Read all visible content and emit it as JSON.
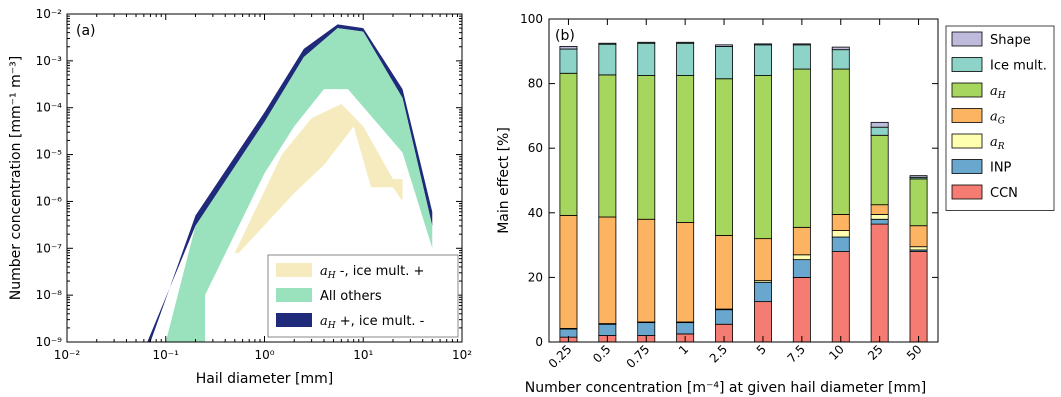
{
  "chart_data": [
    {
      "panel": "(a)",
      "type": "area",
      "xlabel": "Hail diameter [mm]",
      "ylabel": "Number concentration [mm⁻¹ m⁻³]",
      "xscale": "log",
      "yscale": "log",
      "xlim": [
        0.01,
        100
      ],
      "ylim": [
        1e-09,
        0.01
      ],
      "xticks": [
        "10⁻²",
        "10⁻¹",
        "10⁰",
        "10¹",
        "10²"
      ],
      "yticks": [
        "10⁻⁹",
        "10⁻⁸",
        "10⁻⁷",
        "10⁻⁶",
        "10⁻⁵",
        "10⁻⁴",
        "10⁻³",
        "10⁻²"
      ],
      "legend_position": "lower-right",
      "series": [
        {
          "name": "a_H +, ice mult. -",
          "color": "#1f2a7a",
          "upper": [
            [
              0.07,
              1e-09
            ],
            [
              0.2,
              5e-07
            ],
            [
              1.0,
              8e-05
            ],
            [
              2.5,
              0.0018
            ],
            [
              5.5,
              0.006
            ],
            [
              10,
              0.005
            ],
            [
              25,
              0.00025
            ],
            [
              50,
              6e-07
            ]
          ],
          "lower": [
            [
              0.065,
              1e-09
            ],
            [
              0.2,
              3e-07
            ],
            [
              1.0,
              5e-05
            ],
            [
              2.5,
              0.0012
            ],
            [
              5.5,
              0.005
            ],
            [
              10,
              0.0042
            ],
            [
              25,
              0.00016
            ],
            [
              50,
              3e-07
            ]
          ]
        },
        {
          "name": "All others",
          "color": "#9ae2bd",
          "upper": [
            [
              0.1,
              1e-09
            ],
            [
              0.2,
              3e-07
            ],
            [
              1.0,
              5e-05
            ],
            [
              2.5,
              0.0012
            ],
            [
              5.5,
              0.005
            ],
            [
              10,
              0.0042
            ],
            [
              25,
              0.00016
            ],
            [
              50,
              3e-07
            ]
          ],
          "lower": [
            [
              0.1,
              1e-09
            ],
            [
              0.25,
              1e-09
            ],
            [
              0.25,
              1e-08
            ],
            [
              1.0,
              4e-06
            ],
            [
              2.0,
              4e-05
            ],
            [
              4,
              0.00025
            ],
            [
              7,
              0.00025
            ],
            [
              25,
              1.1e-05
            ],
            [
              50,
              1e-07
            ]
          ]
        },
        {
          "name": "a_H -, ice mult. +",
          "color": "#f5ebbe",
          "upper": [
            [
              0.5,
              8e-08
            ],
            [
              1.5,
              1e-05
            ],
            [
              3,
              6e-05
            ],
            [
              6,
              0.00012
            ],
            [
              10,
              4e-05
            ],
            [
              20,
              3e-06
            ],
            [
              25,
              3e-06
            ]
          ],
          "lower": [
            [
              0.55,
              8e-08
            ],
            [
              2,
              1.5e-06
            ],
            [
              4,
              6e-06
            ],
            [
              8,
              4e-05
            ],
            [
              12,
              2e-06
            ],
            [
              20,
              2e-06
            ],
            [
              25,
              1e-06
            ]
          ]
        }
      ]
    },
    {
      "panel": "(b)",
      "type": "bar",
      "stacked": true,
      "xlabel": "Number concentration [m⁻⁴] at given hail diameter [mm]",
      "ylabel": "Main effect [%]",
      "ylim": [
        0,
        100
      ],
      "yticks": [
        0,
        20,
        40,
        60,
        80,
        100
      ],
      "categories": [
        "0.25",
        "0.5",
        "0.75",
        "1",
        "2.5",
        "5",
        "7.5",
        "10",
        "25",
        "50"
      ],
      "legend_position": "outside-right",
      "series": [
        {
          "name": "CCN",
          "color": "#f47c72",
          "values": [
            1.5,
            2,
            2,
            2.5,
            5.5,
            12.5,
            20,
            28,
            36.5,
            28
          ]
        },
        {
          "name": "INP",
          "color": "#6aa7cf",
          "values": [
            2.5,
            3.5,
            4,
            3.5,
            4.5,
            6,
            5.5,
            4.5,
            1.5,
            0.5
          ]
        },
        {
          "name": "a_R",
          "color": "#ffffb0",
          "values": [
            0.2,
            0.2,
            0.2,
            0.2,
            0.2,
            0.5,
            1.5,
            2,
            1.5,
            1
          ]
        },
        {
          "name": "a_G",
          "color": "#fdb462",
          "values": [
            35,
            33,
            31.8,
            30.8,
            22.8,
            13,
            8.5,
            5,
            3,
            6.5
          ]
        },
        {
          "name": "a_H",
          "color": "#a7d65e",
          "values": [
            44,
            44,
            44.5,
            45.5,
            48.5,
            50.5,
            49,
            45,
            21.5,
            14.5
          ]
        },
        {
          "name": "Ice mult.",
          "color": "#8dd3c7",
          "values": [
            7.5,
            9.5,
            10,
            10,
            10,
            9.5,
            7.5,
            6,
            2.5,
            0.5
          ]
        },
        {
          "name": "Shape",
          "color": "#bebadb",
          "values": [
            0.8,
            0.3,
            0.3,
            0.3,
            0.5,
            0.3,
            0.3,
            0.8,
            1.5,
            0.5
          ]
        }
      ]
    }
  ]
}
